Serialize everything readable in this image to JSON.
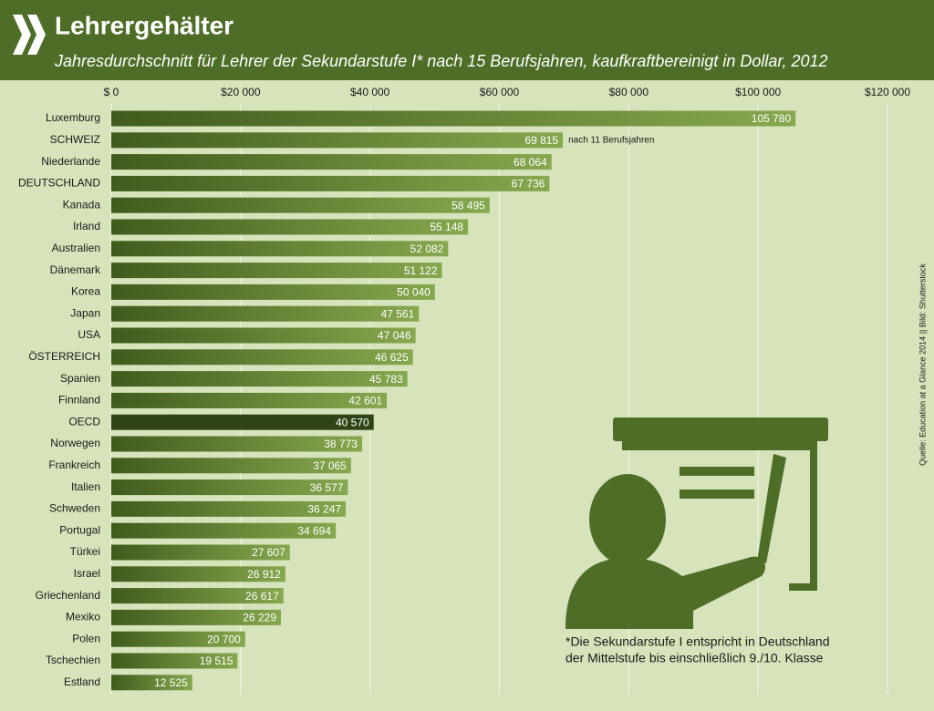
{
  "chart_data": {
    "type": "bar",
    "orientation": "horizontal",
    "title": "Lehrergehälter",
    "subtitle": "Jahresdurchschnitt für Lehrer der Sekundarstufe I* nach 15 Berufsjahren, kaufkraftbereinigt in Dollar, 2012",
    "categories": [
      "Luxemburg",
      "SCHWEIZ",
      "Niederlande",
      "DEUTSCHLAND",
      "Kanada",
      "Irland",
      "Australien",
      "Dänemark",
      "Korea",
      "Japan",
      "USA",
      "ÖSTERREICH",
      "Spanien",
      "Finnland",
      "OECD",
      "Norwegen",
      "Frankreich",
      "Italien",
      "Schweden",
      "Portugal",
      "Türkei",
      "Israel",
      "Griechenland",
      "Mexiko",
      "Polen",
      "Tschechien",
      "Estland"
    ],
    "values": [
      105780,
      69815,
      68064,
      67736,
      58495,
      55148,
      52082,
      51122,
      50040,
      47561,
      47046,
      46625,
      45783,
      42601,
      40570,
      38773,
      37065,
      36577,
      36247,
      34694,
      27607,
      26912,
      26617,
      26229,
      20700,
      19515,
      12525
    ],
    "value_labels": [
      "105 780",
      "69 815",
      "68 064",
      "67 736",
      "58 495",
      "55 148",
      "52 082",
      "51 122",
      "50 040",
      "47 561",
      "47 046",
      "46 625",
      "45 783",
      "42 601",
      "40 570",
      "38 773",
      "37 065",
      "36 577",
      "36 247",
      "34 694",
      "27 607",
      "26 912",
      "26 617",
      "26 229",
      "20 700",
      "19 515",
      "12 525"
    ],
    "colors": [
      "#86a84e",
      "#86a84e",
      "#86a84e",
      "#86a84e",
      "#86a84e",
      "#86a84e",
      "#86a84e",
      "#86a84e",
      "#86a84e",
      "#86a84e",
      "#86a84e",
      "#86a84e",
      "#86a84e",
      "#86a84e",
      "#2f4416",
      "#86a84e",
      "#86a84e",
      "#86a84e",
      "#86a84e",
      "#86a84e",
      "#86a84e",
      "#86a84e",
      "#86a84e",
      "#86a84e",
      "#86a84e",
      "#86a84e",
      "#86a84e"
    ],
    "xlim": [
      0,
      120000
    ],
    "xticks": [
      {
        "value": 0,
        "label": "$ 0"
      },
      {
        "value": 20000,
        "label": "$20 000"
      },
      {
        "value": 40000,
        "label": "$40 000"
      },
      {
        "value": 60000,
        "label": "$60 000"
      },
      {
        "value": 80000,
        "label": "$80 000"
      },
      {
        "value": 100000,
        "label": "$100 000"
      },
      {
        "value": 120000,
        "label": "$120 000"
      }
    ],
    "grid": true,
    "annotations": [
      "nach 11 Berufsjahren",
      "*Die Sekundarstufe I entspricht in Deutschland",
      "der Mittelstufe bis einschließlich 9./10. Klasse",
      "Quelle: Education at a Glance 2014 || Bild: Shutterstock"
    ]
  }
}
